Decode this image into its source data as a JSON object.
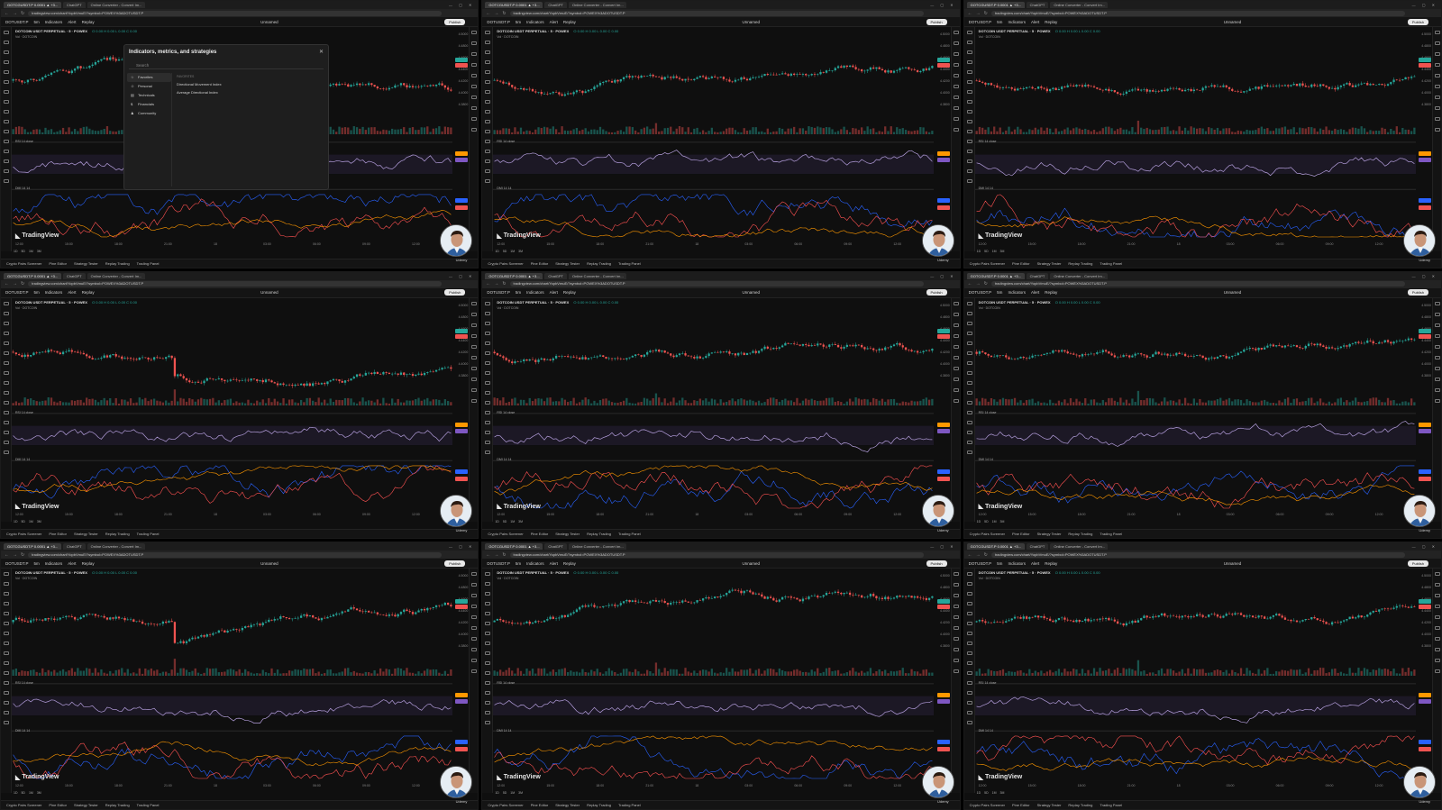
{
  "browser": {
    "tabs": [
      "GOTCGUSDT.P 0.0001 ▲ +3...",
      "ChatGPT",
      "Online Converter - Convert Im..."
    ],
    "url": "tradingview.com/chart/YopbVmuE/?symbol=POWEX%3ADOTUSDT.P"
  },
  "toolbar": {
    "symbol": "DOTUSDT.P",
    "timeframe": "5m",
    "indicators_label": "Indicators",
    "alert_label": "Alert",
    "replay_label": "Replay",
    "unnamed_label": "Unnamed",
    "publish_label": "Publish"
  },
  "chart": {
    "symbol_title": "DOTCOIN USDT PERPETUAL · 5 · POWEX",
    "ohlc": "O 0.00 H 0.00 L 0.00 C 0.00",
    "vol_label": "Vol · DOTCOIN",
    "rsi_label": "RSI 14 close",
    "dmi_label": "DMI 14 14"
  },
  "price_ticks": [
    "4.5000",
    "4.4800",
    "4.4600",
    "4.4400",
    "4.4200",
    "4.4000",
    "4.3800"
  ],
  "time_ticks": [
    "12:00",
    "15:00",
    "18:00",
    "21:00",
    "18",
    "03:00",
    "06:00",
    "09:00",
    "12:00"
  ],
  "range_buttons": [
    "1D",
    "5D",
    "1M",
    "3M"
  ],
  "bottom_tabs": [
    "Crypto Pairs Screener",
    "Pine Editor",
    "Strategy Tester",
    "Replay Trading",
    "Trading Panel"
  ],
  "logo_text": "TradingView",
  "avatar_label": "Udemy",
  "modal": {
    "title": "Indicators, metrics, and strategies",
    "search_placeholder": "Search",
    "categories": [
      "Favorites",
      "Personal",
      "Technicals",
      "Financials",
      "Community"
    ],
    "section_label": "FAVORITES",
    "items": [
      "Directional Movement Index",
      "Average Directional Index"
    ]
  },
  "colors": {
    "up": "#26a69a",
    "down": "#ef5350",
    "rsi": "#b39ddb",
    "dmi_plus": "#2962ff",
    "dmi_minus": "#ff5252",
    "adx": "#ff9800"
  }
}
